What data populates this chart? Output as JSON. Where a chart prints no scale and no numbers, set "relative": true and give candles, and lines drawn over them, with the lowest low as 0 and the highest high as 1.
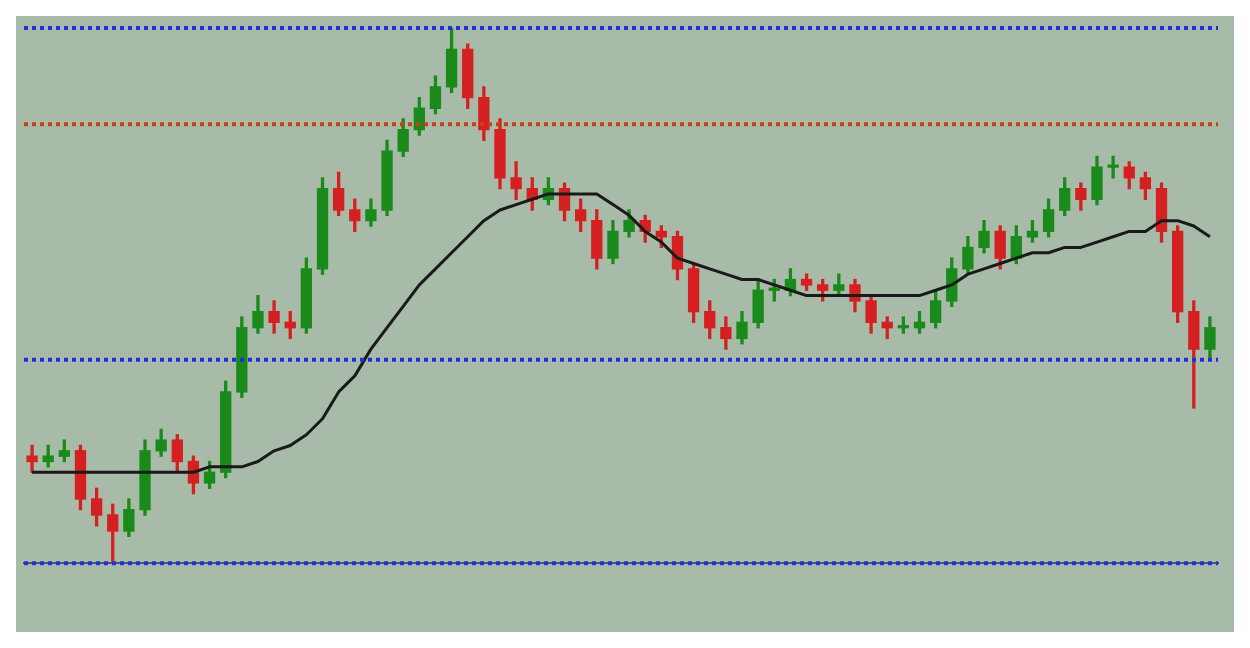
{
  "chart_data": {
    "type": "candlestick",
    "relative": true,
    "categories": [
      null,
      null,
      null,
      null,
      null,
      null,
      null,
      null,
      null,
      null,
      null,
      null,
      null,
      null,
      null,
      null,
      null,
      null,
      null,
      null,
      null,
      null,
      null,
      null,
      null,
      null,
      null,
      null,
      null,
      null,
      null,
      null,
      null,
      null,
      null,
      null,
      null,
      null,
      null,
      null,
      null,
      null,
      null,
      null,
      null,
      null,
      null,
      null,
      null,
      null,
      null,
      null,
      null,
      null,
      null,
      null,
      null,
      null,
      null,
      null,
      null,
      null,
      null,
      null,
      null,
      null,
      null,
      null,
      null,
      null,
      null,
      null,
      null,
      null
    ],
    "ohlc": [
      [
        0.2,
        0.22,
        0.17,
        0.19
      ],
      [
        0.19,
        0.22,
        0.18,
        0.2
      ],
      [
        0.2,
        0.23,
        0.19,
        0.21
      ],
      [
        0.21,
        0.22,
        0.1,
        0.12
      ],
      [
        0.12,
        0.14,
        0.07,
        0.09
      ],
      [
        0.09,
        0.11,
        0.0,
        0.06
      ],
      [
        0.06,
        0.12,
        0.05,
        0.1
      ],
      [
        0.1,
        0.23,
        0.09,
        0.21
      ],
      [
        0.21,
        0.25,
        0.2,
        0.23
      ],
      [
        0.23,
        0.24,
        0.17,
        0.19
      ],
      [
        0.19,
        0.2,
        0.13,
        0.15
      ],
      [
        0.15,
        0.19,
        0.14,
        0.17
      ],
      [
        0.17,
        0.34,
        0.16,
        0.32
      ],
      [
        0.32,
        0.46,
        0.31,
        0.44
      ],
      [
        0.44,
        0.5,
        0.43,
        0.47
      ],
      [
        0.47,
        0.49,
        0.43,
        0.45
      ],
      [
        0.45,
        0.47,
        0.42,
        0.44
      ],
      [
        0.44,
        0.57,
        0.43,
        0.55
      ],
      [
        0.55,
        0.72,
        0.54,
        0.7
      ],
      [
        0.7,
        0.73,
        0.65,
        0.66
      ],
      [
        0.66,
        0.68,
        0.62,
        0.64
      ],
      [
        0.64,
        0.68,
        0.63,
        0.66
      ],
      [
        0.66,
        0.79,
        0.65,
        0.77
      ],
      [
        0.77,
        0.83,
        0.76,
        0.81
      ],
      [
        0.81,
        0.87,
        0.8,
        0.85
      ],
      [
        0.85,
        0.91,
        0.84,
        0.89
      ],
      [
        0.89,
        1.0,
        0.88,
        0.96
      ],
      [
        0.96,
        0.97,
        0.85,
        0.87
      ],
      [
        0.87,
        0.89,
        0.79,
        0.81
      ],
      [
        0.81,
        0.83,
        0.7,
        0.72
      ],
      [
        0.72,
        0.75,
        0.68,
        0.7
      ],
      [
        0.7,
        0.72,
        0.66,
        0.68
      ],
      [
        0.68,
        0.72,
        0.67,
        0.7
      ],
      [
        0.7,
        0.71,
        0.64,
        0.66
      ],
      [
        0.66,
        0.68,
        0.62,
        0.64
      ],
      [
        0.64,
        0.66,
        0.55,
        0.57
      ],
      [
        0.57,
        0.64,
        0.56,
        0.62
      ],
      [
        0.62,
        0.66,
        0.61,
        0.64
      ],
      [
        0.64,
        0.65,
        0.6,
        0.62
      ],
      [
        0.62,
        0.63,
        0.59,
        0.61
      ],
      [
        0.61,
        0.62,
        0.53,
        0.55
      ],
      [
        0.55,
        0.56,
        0.45,
        0.47
      ],
      [
        0.47,
        0.49,
        0.42,
        0.44
      ],
      [
        0.44,
        0.46,
        0.4,
        0.42
      ],
      [
        0.42,
        0.47,
        0.41,
        0.45
      ],
      [
        0.45,
        0.53,
        0.44,
        0.51
      ],
      [
        0.51,
        0.53,
        0.49,
        0.51
      ],
      [
        0.51,
        0.55,
        0.5,
        0.53
      ],
      [
        0.53,
        0.54,
        0.51,
        0.52
      ],
      [
        0.52,
        0.53,
        0.49,
        0.51
      ],
      [
        0.51,
        0.54,
        0.5,
        0.52
      ],
      [
        0.52,
        0.53,
        0.47,
        0.49
      ],
      [
        0.49,
        0.5,
        0.43,
        0.45
      ],
      [
        0.45,
        0.46,
        0.42,
        0.44
      ],
      [
        0.44,
        0.46,
        0.43,
        0.44
      ],
      [
        0.44,
        0.47,
        0.43,
        0.45
      ],
      [
        0.45,
        0.51,
        0.44,
        0.49
      ],
      [
        0.49,
        0.57,
        0.48,
        0.55
      ],
      [
        0.55,
        0.61,
        0.54,
        0.59
      ],
      [
        0.59,
        0.64,
        0.58,
        0.62
      ],
      [
        0.62,
        0.63,
        0.55,
        0.57
      ],
      [
        0.57,
        0.63,
        0.56,
        0.61
      ],
      [
        0.61,
        0.64,
        0.6,
        0.62
      ],
      [
        0.62,
        0.68,
        0.61,
        0.66
      ],
      [
        0.66,
        0.72,
        0.65,
        0.7
      ],
      [
        0.7,
        0.71,
        0.66,
        0.68
      ],
      [
        0.68,
        0.76,
        0.67,
        0.74
      ],
      [
        0.74,
        0.76,
        0.72,
        0.74
      ],
      [
        0.74,
        0.75,
        0.7,
        0.72
      ],
      [
        0.72,
        0.73,
        0.68,
        0.7
      ],
      [
        0.7,
        0.71,
        0.6,
        0.62
      ],
      [
        0.62,
        0.63,
        0.45,
        0.47
      ],
      [
        0.47,
        0.49,
        0.29,
        0.4
      ],
      [
        0.4,
        0.46,
        0.38,
        0.44
      ]
    ],
    "series": [
      {
        "type": "line",
        "color": "#1a1a1a",
        "values": [
          0.17,
          0.17,
          0.17,
          0.17,
          0.17,
          0.17,
          0.17,
          0.17,
          0.17,
          0.17,
          0.17,
          0.18,
          0.18,
          0.18,
          0.19,
          0.21,
          0.22,
          0.24,
          0.27,
          0.32,
          0.35,
          0.4,
          0.44,
          0.48,
          0.52,
          0.55,
          0.58,
          0.61,
          0.64,
          0.66,
          0.67,
          0.68,
          0.69,
          0.69,
          0.69,
          0.69,
          0.67,
          0.65,
          0.62,
          0.6,
          0.57,
          0.56,
          0.55,
          0.54,
          0.53,
          0.53,
          0.52,
          0.51,
          0.5,
          0.5,
          0.5,
          0.5,
          0.5,
          0.5,
          0.5,
          0.5,
          0.51,
          0.52,
          0.54,
          0.55,
          0.56,
          0.57,
          0.58,
          0.58,
          0.59,
          0.59,
          0.6,
          0.61,
          0.62,
          0.62,
          0.64,
          0.64,
          0.63,
          0.61
        ]
      }
    ],
    "marker": "none",
    "line_style": "solid",
    "ref_lines": [
      {
        "axis": "y",
        "value": 1.0,
        "color": "#1f2fe0",
        "line_style": "dotted"
      },
      {
        "axis": "y",
        "value": 0.82,
        "color": "#c8401a",
        "line_style": "dotted"
      },
      {
        "axis": "y",
        "value": 0.38,
        "color": "#1f2fe0",
        "line_style": "dotted"
      },
      {
        "axis": "y",
        "value": 0.0,
        "color": "#1f2fe0",
        "line_style": "dotted"
      }
    ],
    "grid": false,
    "legend": false
  }
}
